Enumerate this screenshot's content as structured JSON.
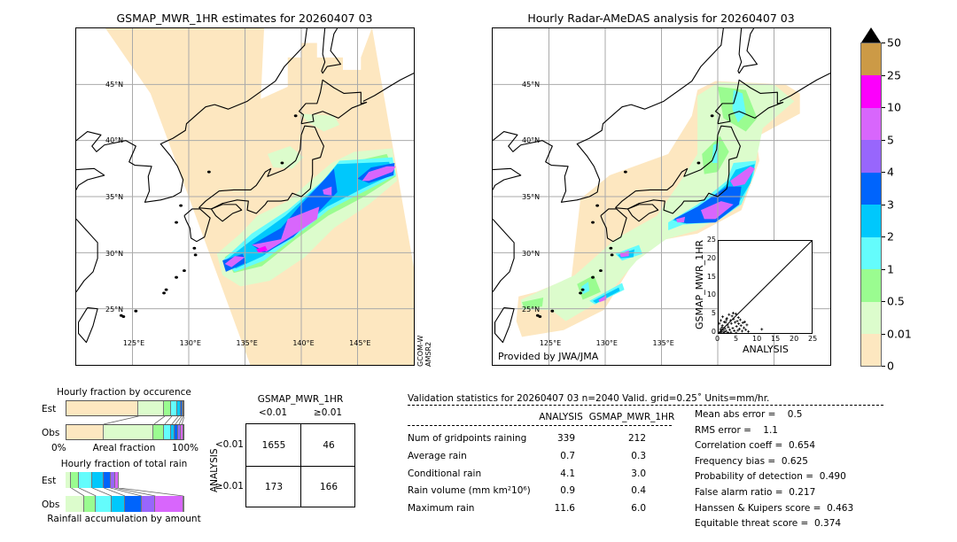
{
  "left_map": {
    "title": "GSMAP_MWR_1HR estimates for 20260407 03",
    "sensor_label_1": "GCOM-W",
    "sensor_label_2": "AMSR2"
  },
  "right_map": {
    "title": "Hourly Radar-AMeDAS analysis for 20260407 03",
    "credit": "Provided by JWA/JMA"
  },
  "grid": {
    "lat_labels": [
      "45°N",
      "40°N",
      "35°N",
      "30°N",
      "25°N"
    ],
    "lat_values": [
      45,
      40,
      35,
      30,
      25
    ],
    "lon_labels": [
      "125°E",
      "130°E",
      "135°E",
      "140°E",
      "145°E"
    ],
    "lon_values": [
      125,
      130,
      135,
      140,
      145
    ],
    "lon_range": [
      120,
      150
    ],
    "lat_range": [
      20,
      50
    ]
  },
  "colorbar": {
    "ticks": [
      "0",
      "0.01",
      "0.5",
      "1",
      "2",
      "3",
      "4",
      "5",
      "10",
      "25",
      "50"
    ],
    "colors": [
      "#fde7c0",
      "#dcfccc",
      "#9afc90",
      "#64fcfc",
      "#00c8fc",
      "#0064fc",
      "#9866fc",
      "#d866fc",
      "#fc00fc",
      "#cc9a46"
    ],
    "extend_color": "#000000"
  },
  "scatter": {
    "xlabel": "ANALYSIS",
    "ylabel": "GSMAP_MWR_1HR",
    "ticks": [
      "0",
      "5",
      "10",
      "15",
      "20",
      "25"
    ],
    "range": [
      0,
      25
    ],
    "points": [
      [
        0.3,
        0.2
      ],
      [
        0.5,
        1.0
      ],
      [
        0.8,
        0.4
      ],
      [
        1.0,
        2.0
      ],
      [
        1.2,
        0.8
      ],
      [
        1.5,
        3.0
      ],
      [
        1.7,
        1.2
      ],
      [
        2.0,
        0.5
      ],
      [
        2.2,
        4.0
      ],
      [
        2.4,
        2.2
      ],
      [
        2.6,
        1.6
      ],
      [
        2.8,
        5.0
      ],
      [
        3.0,
        0.9
      ],
      [
        3.2,
        3.4
      ],
      [
        3.4,
        2.6
      ],
      [
        3.6,
        4.6
      ],
      [
        3.8,
        1.3
      ],
      [
        4.0,
        3.8
      ],
      [
        4.2,
        0.6
      ],
      [
        4.4,
        2.9
      ],
      [
        4.6,
        5.2
      ],
      [
        4.8,
        1.8
      ],
      [
        5.0,
        3.2
      ],
      [
        5.2,
        0.7
      ],
      [
        5.4,
        2.5
      ],
      [
        5.6,
        1.1
      ],
      [
        5.8,
        3.6
      ],
      [
        6.0,
        2.0
      ],
      [
        6.3,
        0.5
      ],
      [
        6.5,
        2.8
      ],
      [
        6.8,
        1.4
      ],
      [
        7.0,
        3.0
      ],
      [
        7.3,
        0.9
      ],
      [
        7.6,
        2.2
      ],
      [
        8.0,
        0.4
      ],
      [
        0.2,
        2.6
      ],
      [
        0.6,
        3.4
      ],
      [
        1.1,
        4.4
      ],
      [
        1.9,
        2.9
      ],
      [
        0.4,
        0.0
      ],
      [
        1.3,
        0.0
      ],
      [
        2.5,
        0.1
      ],
      [
        3.3,
        0.2
      ],
      [
        4.7,
        0.0
      ],
      [
        11.6,
        1.0
      ],
      [
        0.9,
        1.5
      ],
      [
        1.6,
        0.3
      ],
      [
        2.1,
        3.6
      ],
      [
        3.9,
        5.4
      ],
      [
        5.3,
        4.2
      ]
    ]
  },
  "occurrence": {
    "title": "Hourly fraction by occurence",
    "est_label": "Est",
    "obs_label": "Obs",
    "axis_left": "0%",
    "axis_center": "Areal fraction",
    "axis_right": "100%",
    "est_fractions": [
      0.615,
      0.22,
      0.06,
      0.055,
      0.025,
      0.015,
      0.01
    ],
    "est_colors": [
      "#fde7c0",
      "#dcfccc",
      "#9afc90",
      "#64fcfc",
      "#00c8fc",
      "#0064fc",
      "#1a2a5a"
    ],
    "obs_fractions": [
      0.32,
      0.425,
      0.09,
      0.06,
      0.03,
      0.03,
      0.025,
      0.02
    ],
    "obs_colors": [
      "#fde7c0",
      "#dcfccc",
      "#9afc90",
      "#64fcfc",
      "#00c8fc",
      "#0064fc",
      "#9866fc",
      "#d866fc"
    ]
  },
  "total_rain": {
    "title": "Hourly fraction of total rain",
    "est_label": "Est",
    "obs_label": "Obs",
    "axis_label": "Rainfall accumulation by amount",
    "est_fractions": [
      0.048,
      0.065,
      0.113,
      0.098,
      0.053,
      0.038,
      0.035
    ],
    "est_colors": [
      "#dcfccc",
      "#9afc90",
      "#64fcfc",
      "#00c8fc",
      "#0064fc",
      "#9866fc",
      "#d866fc"
    ],
    "obs_fractions": [
      0.156,
      0.1,
      0.131,
      0.113,
      0.14,
      0.116,
      0.235,
      0.009
    ],
    "obs_colors": [
      "#dcfccc",
      "#9afc90",
      "#64fcfc",
      "#00c8fc",
      "#0064fc",
      "#9866fc",
      "#d866fc",
      "#5a1a6a"
    ]
  },
  "contingency": {
    "col_title": "GSMAP_MWR_1HR",
    "col_labels": [
      "<0.01",
      "≥0.01"
    ],
    "row_title": "ANALYSIS",
    "row_labels": [
      "<0.01",
      "≥0.01"
    ],
    "cells": [
      [
        "1655",
        "46"
      ],
      [
        "173",
        "166"
      ]
    ]
  },
  "validation": {
    "header": "Validation statistics for 20260407 03  n=2040 Valid. grid=0.25˚ Units=mm/hr.",
    "col_analysis": "ANALYSIS",
    "col_gsmap": "GSMAP_MWR_1HR",
    "rows": [
      {
        "label": "Num of gridpoints raining",
        "analysis": "339",
        "gsmap": "212"
      },
      {
        "label": "Average rain",
        "analysis": "0.7",
        "gsmap": "0.3"
      },
      {
        "label": "Conditional rain",
        "analysis": "4.1",
        "gsmap": "3.0"
      },
      {
        "label": "Rain volume (mm km²10⁶)",
        "analysis": "0.9",
        "gsmap": "0.4"
      },
      {
        "label": "Maximum rain",
        "analysis": "11.6",
        "gsmap": "6.0"
      }
    ],
    "scores": [
      "Mean abs error =    0.5",
      "RMS error =    1.1",
      "Correlation coeff =  0.654",
      "Frequency bias =  0.625",
      "Probability of detection =  0.490",
      "False alarm ratio =  0.217",
      "Hanssen & Kuipers score =  0.463",
      "Equitable threat score =  0.374"
    ]
  }
}
